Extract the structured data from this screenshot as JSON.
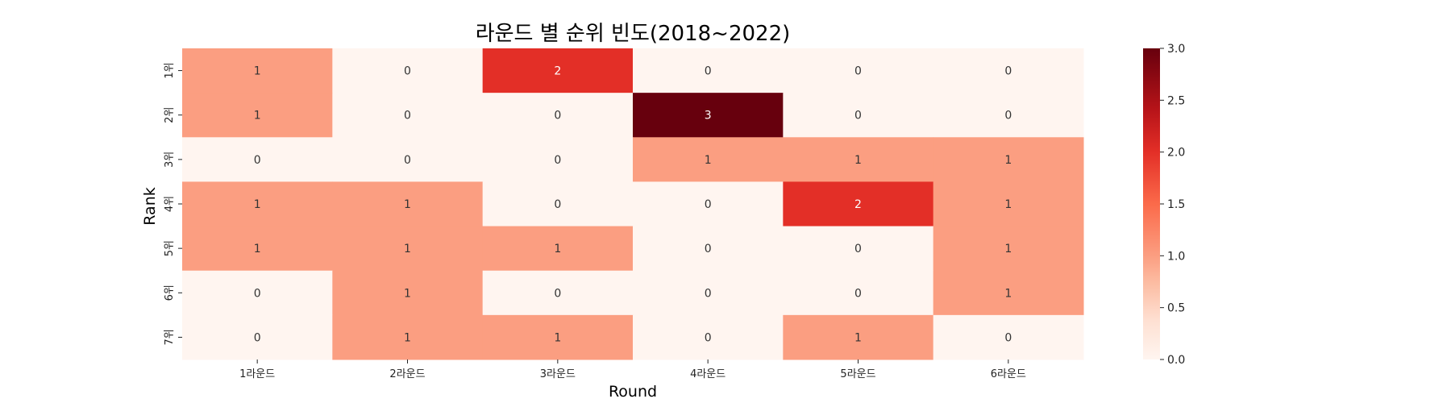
{
  "chart_data": {
    "type": "heatmap",
    "title": "라운드 별 순위 빈도(2018~2022)",
    "xlabel": "Round",
    "ylabel": "Rank",
    "x_categories": [
      "1라운드",
      "2라운드",
      "3라운드",
      "4라운드",
      "5라운드",
      "6라운드"
    ],
    "y_categories": [
      "1위",
      "2위",
      "3위",
      "4위",
      "5위",
      "6위",
      "7위"
    ],
    "values": [
      [
        1,
        0,
        2,
        0,
        0,
        0
      ],
      [
        1,
        0,
        0,
        3,
        0,
        0
      ],
      [
        0,
        0,
        0,
        1,
        1,
        1
      ],
      [
        1,
        1,
        0,
        0,
        2,
        1
      ],
      [
        1,
        1,
        1,
        0,
        0,
        1
      ],
      [
        0,
        1,
        0,
        0,
        0,
        1
      ],
      [
        0,
        1,
        1,
        0,
        1,
        0
      ]
    ],
    "colorbar": {
      "range": [
        0,
        3
      ],
      "ticks": [
        "0.0",
        "0.5",
        "1.0",
        "1.5",
        "2.0",
        "2.5",
        "3.0"
      ]
    },
    "colormap": "Reds",
    "colors": {
      "0": "#fff5f0",
      "1": "#fb9e81",
      "2": "#e32f27",
      "3": "#67000d"
    }
  }
}
